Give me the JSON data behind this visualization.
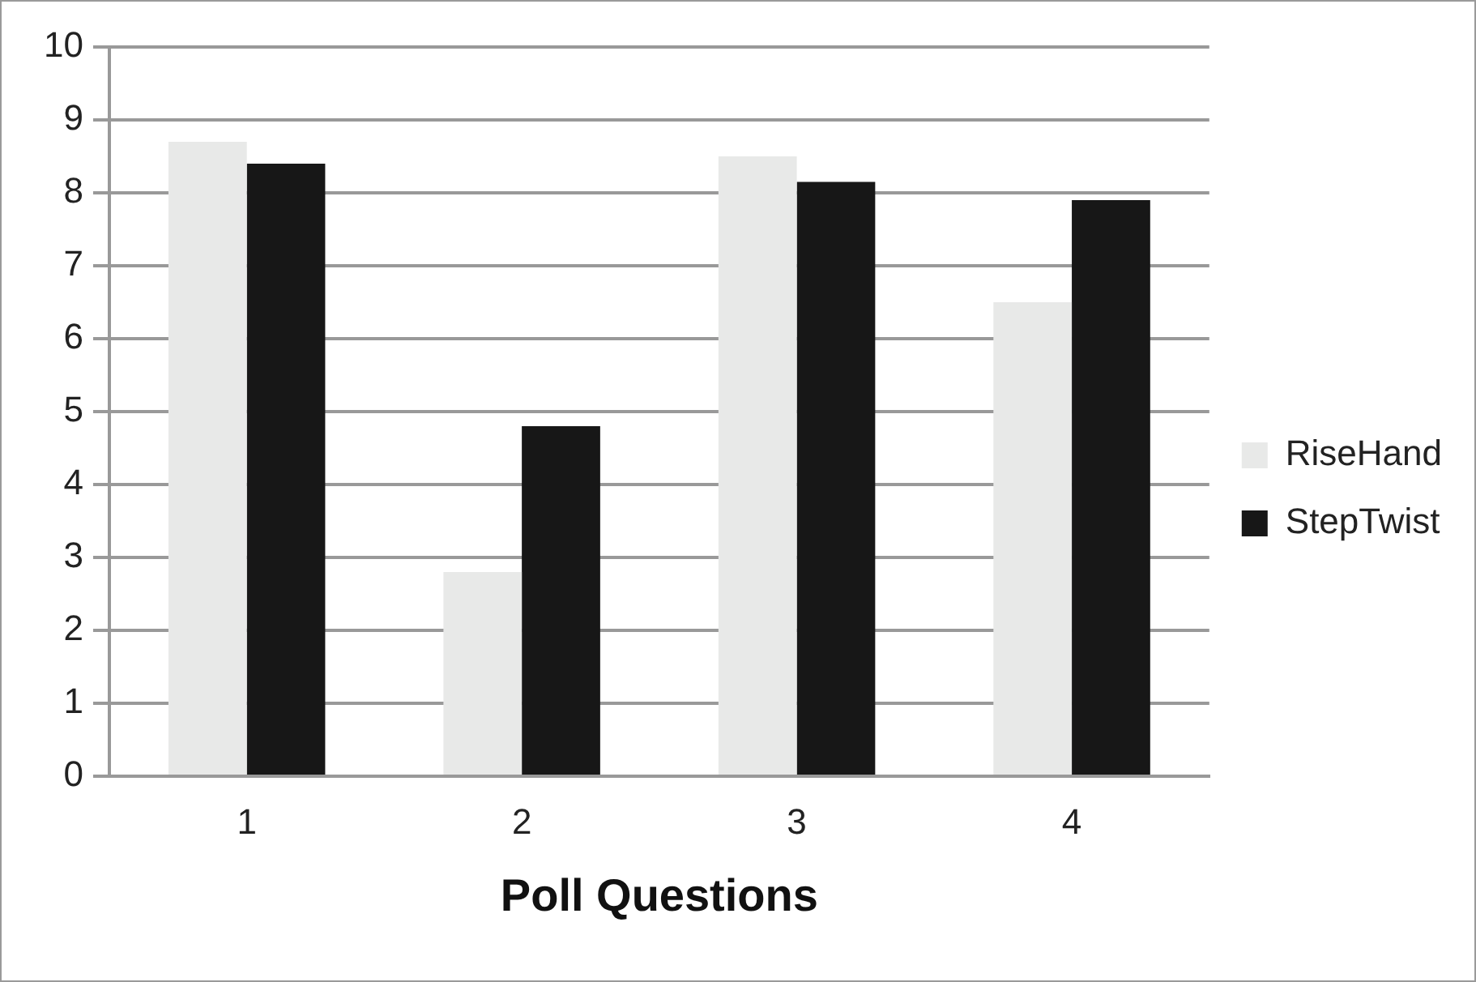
{
  "chart_data": {
    "type": "bar",
    "xlabel": "Poll Questions",
    "categories": [
      "1",
      "2",
      "3",
      "4"
    ],
    "series": [
      {
        "name": "RiseHand",
        "color": "#e8e9e8",
        "values": [
          8.7,
          2.8,
          8.5,
          6.5
        ]
      },
      {
        "name": "StepTwist",
        "color": "#171717",
        "values": [
          8.4,
          4.8,
          8.15,
          7.9
        ]
      }
    ],
    "ylim": [
      0,
      10
    ],
    "yticks": [
      0,
      1,
      2,
      3,
      4,
      5,
      6,
      7,
      8,
      9,
      10
    ],
    "grid": "y",
    "legend": "right"
  }
}
